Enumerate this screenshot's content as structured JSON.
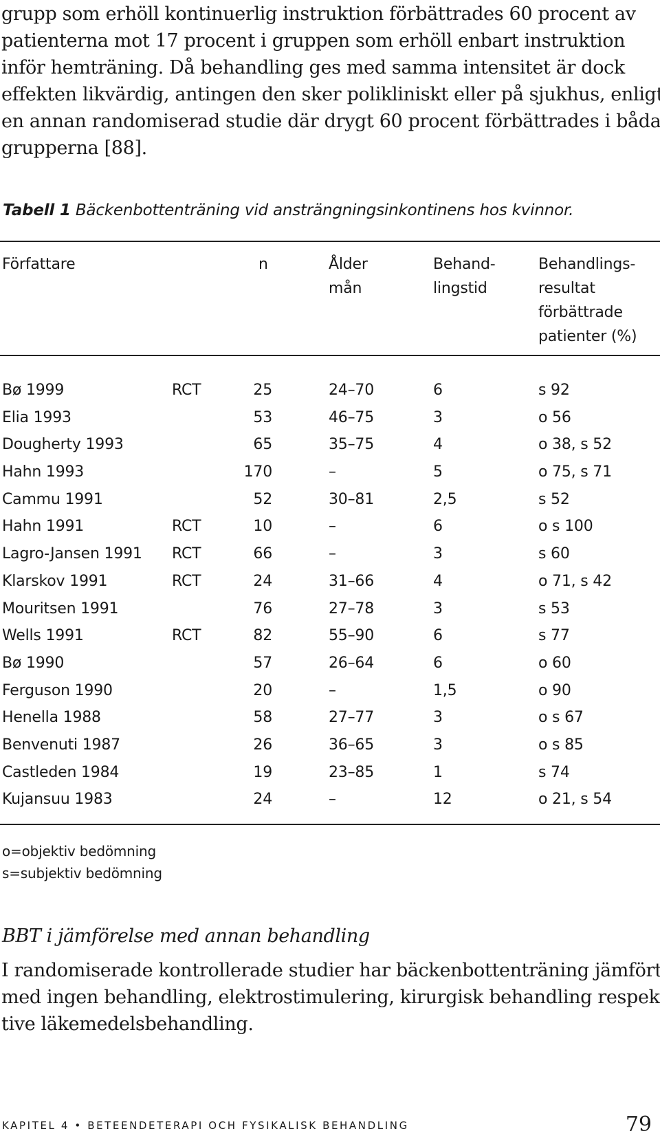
{
  "paragraph1": [
    "grupp som erhöll kontinuerlig instruktion förbättrades 60 procent av",
    "patienterna mot 17 procent i gruppen som erhöll enbart instruktion",
    "inför hemträning. Då behandling ges med samma intensitet är dock",
    "effekten likvärdig, antingen den sker polikliniskt eller på sjukhus, enligt",
    "en annan randomiserad studie där drygt 60 procent förbättrades i båda",
    "grupperna [88]."
  ],
  "table": {
    "caption_label": "Tabell 1",
    "caption_text": " Bäckenbottenträning vid ansträngningsinkontinens hos kvinnor.",
    "headers": {
      "author": [
        "Författare"
      ],
      "n": [
        "n"
      ],
      "age": [
        "Ålder",
        "mån"
      ],
      "duration": [
        "Behand-",
        "lingstid"
      ],
      "result": [
        "Behandlings-",
        "resultat",
        "förbättrade",
        "patienter (%)"
      ]
    },
    "rows": [
      {
        "author": "Bø 1999",
        "design": "RCT",
        "n": "25",
        "age": "24–70",
        "duration": "6",
        "result": "s 92"
      },
      {
        "author": "Elia 1993",
        "design": "",
        "n": "53",
        "age": "46–75",
        "duration": "3",
        "result": "o 56"
      },
      {
        "author": "Dougherty 1993",
        "design": "",
        "n": "65",
        "age": "35–75",
        "duration": "4",
        "result": "o 38, s 52"
      },
      {
        "author": "Hahn 1993",
        "design": "",
        "n": "170",
        "age": "–",
        "duration": "5",
        "result": "o 75, s 71"
      },
      {
        "author": "Cammu 1991",
        "design": "",
        "n": "52",
        "age": "30–81",
        "duration": "2,5",
        "result": "s 52"
      },
      {
        "author": "Hahn 1991",
        "design": "RCT",
        "n": "10",
        "age": "–",
        "duration": "6",
        "result": "o s 100"
      },
      {
        "author": "Lagro-Jansen 1991",
        "design": "RCT",
        "n": "66",
        "age": "–",
        "duration": "3",
        "result": "s 60"
      },
      {
        "author": "Klarskov 1991",
        "design": "RCT",
        "n": "24",
        "age": "31–66",
        "duration": "4",
        "result": "o 71, s 42"
      },
      {
        "author": "Mouritsen 1991",
        "design": "",
        "n": "76",
        "age": "27–78",
        "duration": "3",
        "result": "s 53"
      },
      {
        "author": "Wells 1991",
        "design": "RCT",
        "n": "82",
        "age": "55–90",
        "duration": "6",
        "result": "s 77"
      },
      {
        "author": "Bø 1990",
        "design": "",
        "n": "57",
        "age": "26–64",
        "duration": "6",
        "result": "o 60"
      },
      {
        "author": "Ferguson 1990",
        "design": "",
        "n": "20",
        "age": "–",
        "duration": "1,5",
        "result": "o 90"
      },
      {
        "author": "Henella 1988",
        "design": "",
        "n": "58",
        "age": "27–77",
        "duration": "3",
        "result": "o s 67"
      },
      {
        "author": "Benvenuti 1987",
        "design": "",
        "n": "26",
        "age": "36–65",
        "duration": "3",
        "result": "o s 85"
      },
      {
        "author": "Castleden 1984",
        "design": "",
        "n": "19",
        "age": "23–85",
        "duration": "1",
        "result": "s 74"
      },
      {
        "author": "Kujansuu 1983",
        "design": "",
        "n": "24",
        "age": "–",
        "duration": "12",
        "result": "o 21, s 54"
      }
    ],
    "notes": [
      "o=objektiv bedömning",
      "s=subjektiv bedömning"
    ]
  },
  "section_heading": "BBT i jämförelse med annan behandling",
  "paragraph2": [
    "I randomiserade kontrollerade studier har bäckenbottenträning jämförts",
    "med ingen behandling, elektrostimulering, kirurgisk behandling respek-",
    "tive läkemedelsbehandling."
  ],
  "footer": {
    "running_title": "KAPITEL 4 • BETEENDETERAPI OCH FYSIKALISK BEHANDLING",
    "page_number": "79"
  }
}
